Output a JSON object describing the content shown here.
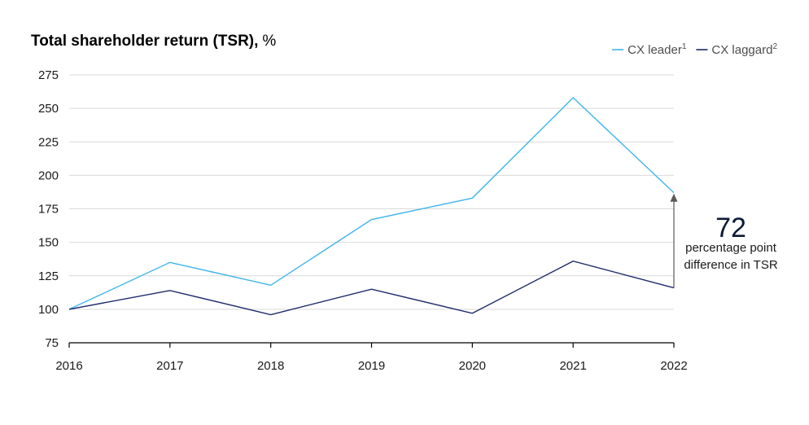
{
  "chart_data": {
    "type": "line",
    "title": "Total shareholder return (TSR),",
    "title_unit": "%",
    "x": [
      "2016",
      "2017",
      "2018",
      "2019",
      "2020",
      "2021",
      "2022"
    ],
    "ylim": [
      75,
      275
    ],
    "yticks": [
      75,
      100,
      125,
      150,
      175,
      200,
      225,
      250,
      275
    ],
    "grid": true,
    "legend_position": "top-right",
    "series": [
      {
        "name": "CX leader",
        "sup": "1",
        "color": "#3fb5eb",
        "values": [
          100,
          135,
          118,
          167,
          183,
          258,
          187
        ]
      },
      {
        "name": "CX laggard",
        "sup": "2",
        "color": "#1d2a6b",
        "values": [
          100,
          114,
          96,
          115,
          97,
          136,
          116
        ]
      }
    ],
    "annotation": {
      "value": "72",
      "line1": "percentage point",
      "line2": "difference in TSR"
    }
  }
}
